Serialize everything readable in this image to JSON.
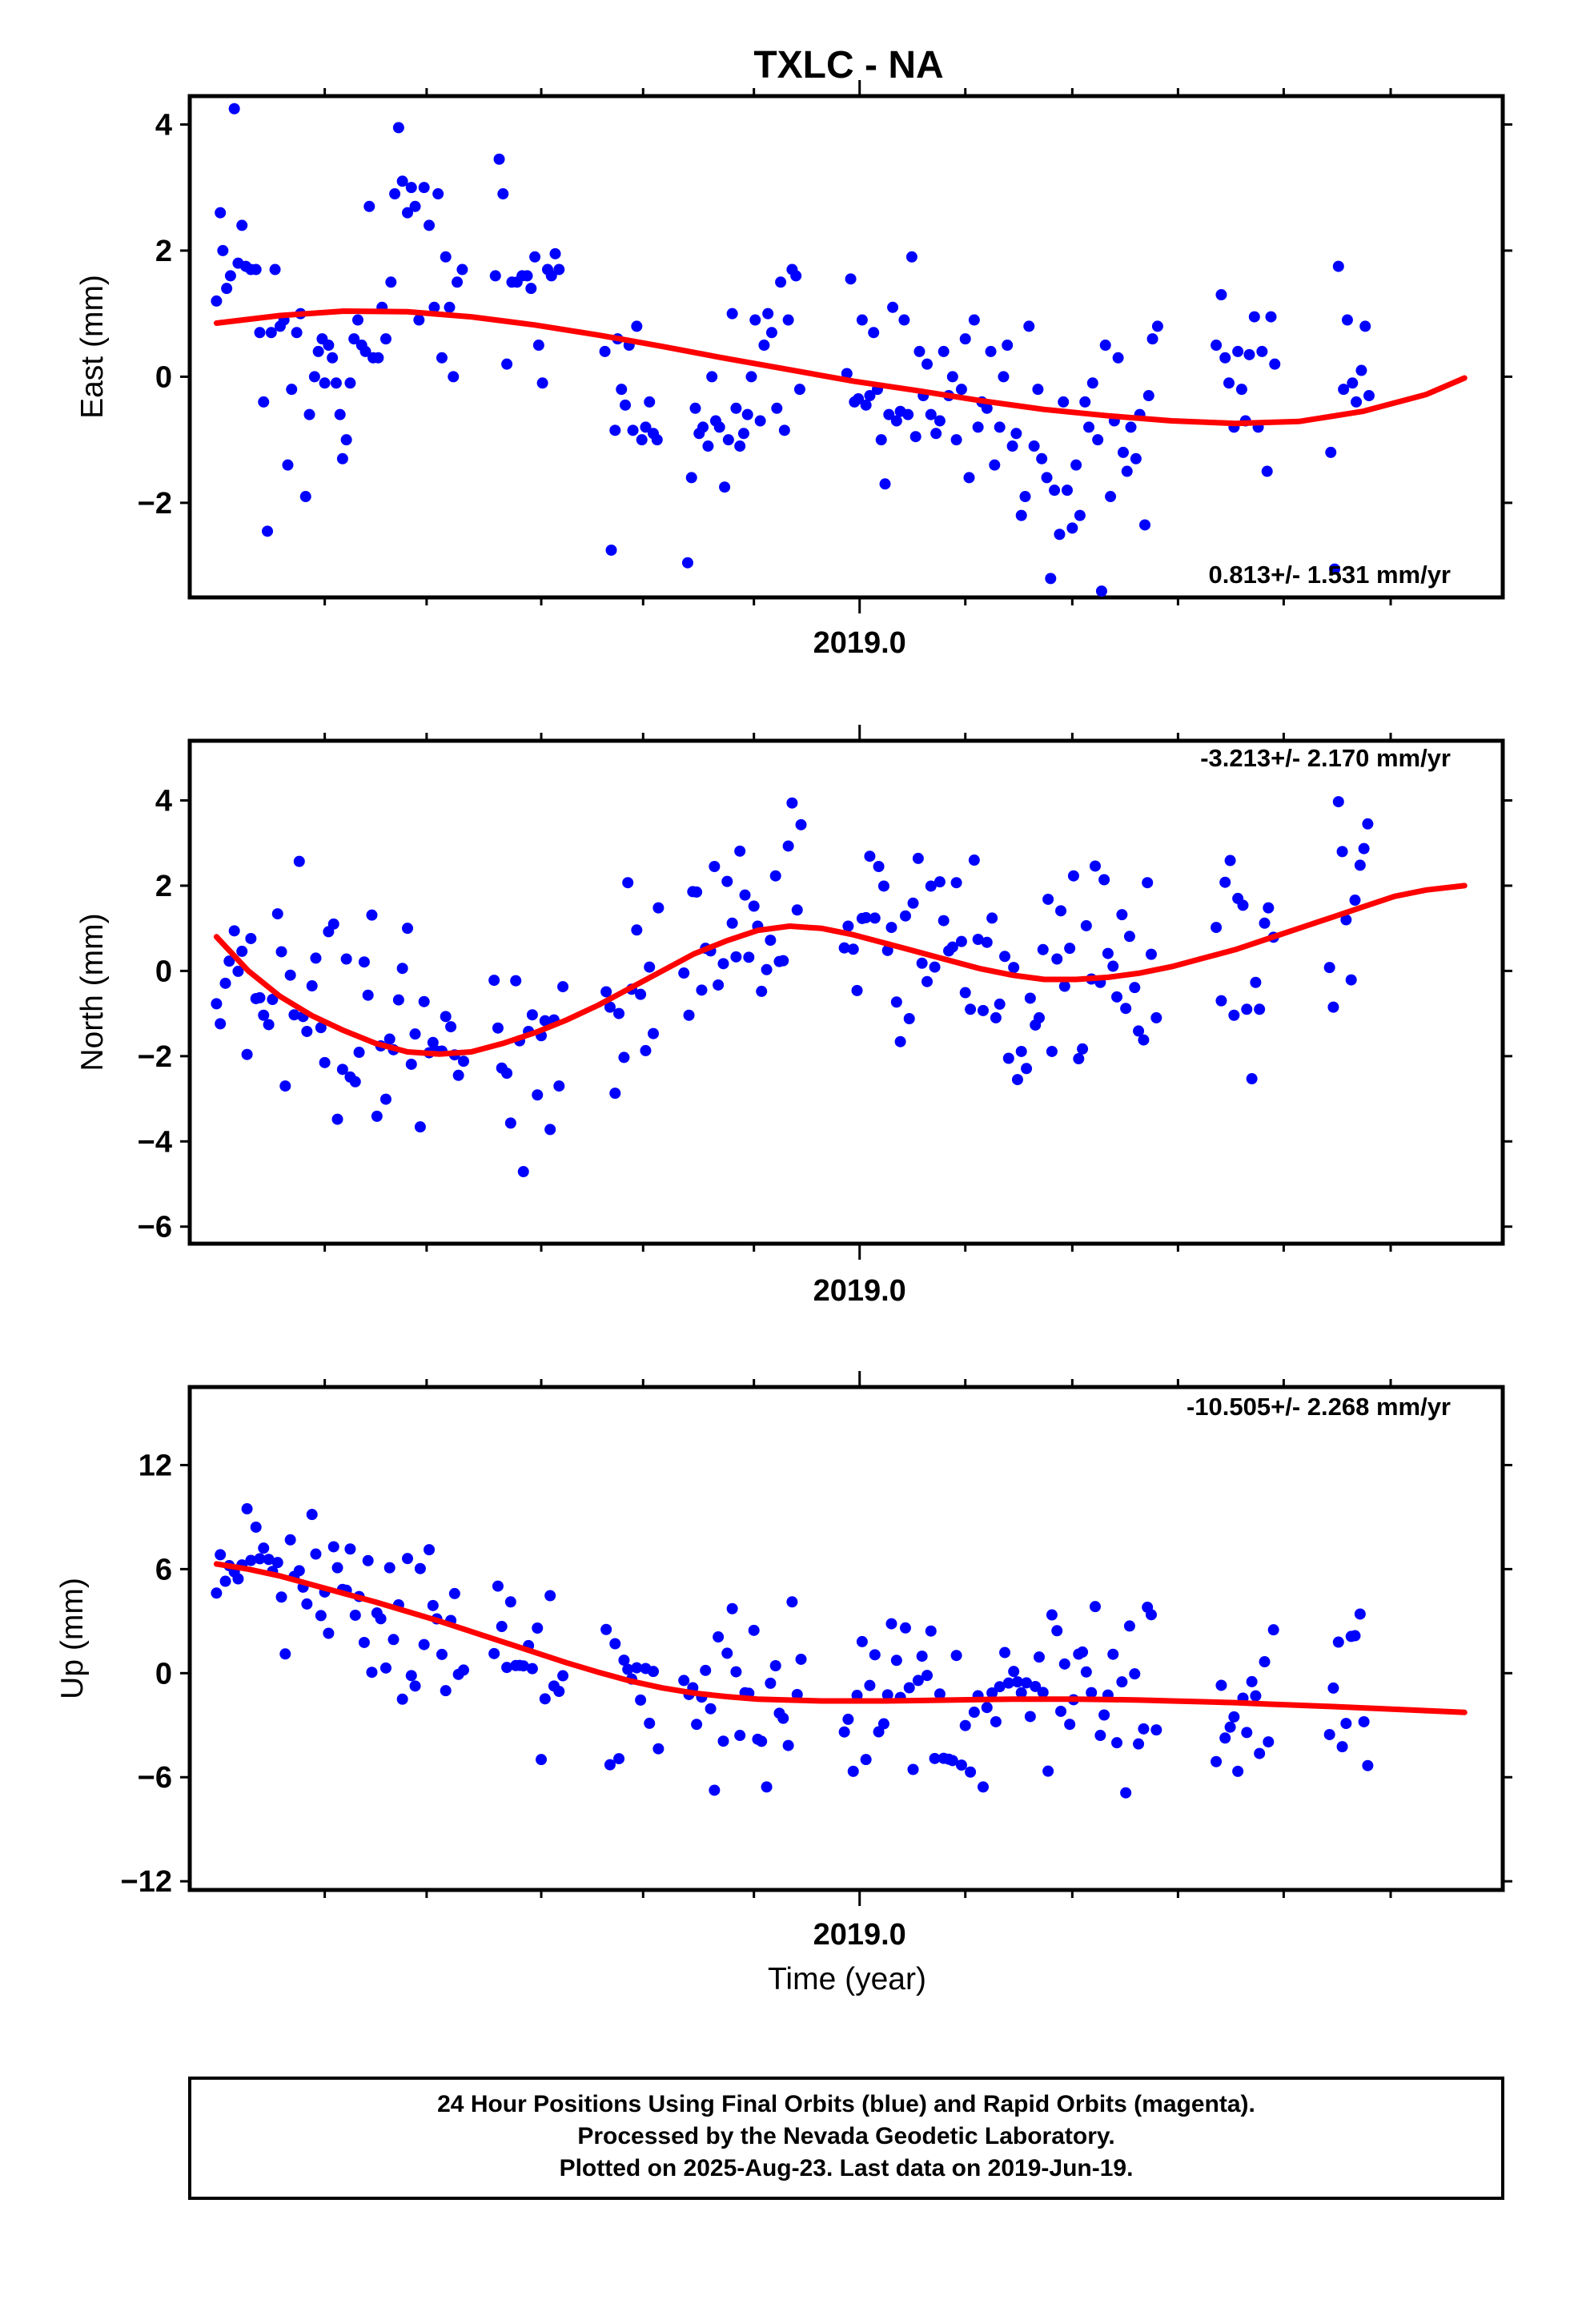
{
  "title": "TXLC - NA",
  "x_axis_label": "Time (year)",
  "footer": {
    "line1": "24 Hour Positions Using Final Orbits (blue) and Rapid Orbits (magenta).",
    "line2": "Processed by the Nevada Geodetic Laboratory.",
    "line3": "Plotted on 2025-Aug-23. Last data on 2019-Jun-19."
  },
  "colors": {
    "points": "#0000ff",
    "fit": "#ff0000",
    "axes": "#000000"
  },
  "chart_data": [
    {
      "type": "scatter",
      "ylabel": "East (mm)",
      "xtick_label": "2019.0",
      "xlim": [
        2018.474,
        2019.505
      ],
      "ylim": [
        -3.5,
        4.45
      ],
      "yticks": [
        4,
        2,
        0,
        -2
      ],
      "ytick_labels": [
        "4",
        "2",
        "0",
        "−2"
      ],
      "rate_text": "0.813+/- 1.531 mm/yr",
      "fit_x": [
        2018.495,
        2018.545,
        2018.595,
        2018.645,
        2018.695,
        2018.745,
        2018.795,
        2018.845,
        2018.895,
        2018.945,
        2018.995,
        2019.045,
        2019.095,
        2019.145,
        2019.195,
        2019.245,
        2019.295,
        2019.345,
        2019.395,
        2019.445,
        2019.475
      ],
      "fit_y": [
        0.85,
        0.97,
        1.04,
        1.03,
        0.95,
        0.82,
        0.66,
        0.48,
        0.29,
        0.11,
        -0.07,
        -0.22,
        -0.38,
        -0.52,
        -0.62,
        -0.7,
        -0.74,
        -0.71,
        -0.55,
        -0.28,
        -0.02
      ],
      "points": [
        [
          2018.495,
          1.2
        ],
        [
          2018.498,
          2.6
        ],
        [
          2018.5,
          2.0
        ],
        [
          2018.503,
          1.4
        ],
        [
          2018.506,
          1.6
        ],
        [
          2018.509,
          4.25
        ],
        [
          2018.512,
          1.8
        ],
        [
          2018.515,
          2.4
        ],
        [
          2018.518,
          1.75
        ],
        [
          2018.522,
          1.7
        ],
        [
          2018.526,
          1.7
        ],
        [
          2018.529,
          0.7
        ],
        [
          2018.532,
          -0.4
        ],
        [
          2018.535,
          -2.45
        ],
        [
          2018.538,
          0.7
        ],
        [
          2018.541,
          1.7
        ],
        [
          2018.545,
          0.8
        ],
        [
          2018.548,
          0.9
        ],
        [
          2018.551,
          -1.4
        ],
        [
          2018.554,
          -0.2
        ],
        [
          2018.558,
          0.7
        ],
        [
          2018.561,
          1.0
        ],
        [
          2018.565,
          -1.9
        ],
        [
          2018.568,
          -0.6
        ],
        [
          2018.572,
          0.0
        ],
        [
          2018.575,
          0.4
        ],
        [
          2018.578,
          0.6
        ],
        [
          2018.58,
          -0.1
        ],
        [
          2018.583,
          0.5
        ],
        [
          2018.586,
          0.3
        ],
        [
          2018.589,
          -0.1
        ],
        [
          2018.592,
          -0.6
        ],
        [
          2018.594,
          -1.3
        ],
        [
          2018.597,
          -1.0
        ],
        [
          2018.6,
          -0.1
        ],
        [
          2018.603,
          0.6
        ],
        [
          2018.606,
          0.9
        ],
        [
          2018.609,
          0.5
        ],
        [
          2018.612,
          0.4
        ],
        [
          2018.615,
          2.7
        ],
        [
          2018.618,
          0.3
        ],
        [
          2018.622,
          0.3
        ],
        [
          2018.625,
          1.1
        ],
        [
          2018.628,
          0.6
        ],
        [
          2018.632,
          1.5
        ],
        [
          2018.635,
          2.9
        ],
        [
          2018.638,
          3.95
        ],
        [
          2018.641,
          3.1
        ],
        [
          2018.645,
          2.6
        ],
        [
          2018.648,
          3.0
        ],
        [
          2018.651,
          2.7
        ],
        [
          2018.654,
          0.9
        ],
        [
          2018.658,
          3.0
        ],
        [
          2018.662,
          2.4
        ],
        [
          2018.666,
          1.1
        ],
        [
          2018.669,
          2.9
        ],
        [
          2018.672,
          0.3
        ],
        [
          2018.675,
          1.9
        ],
        [
          2018.678,
          1.1
        ],
        [
          2018.681,
          0.0
        ],
        [
          2018.684,
          1.5
        ],
        [
          2018.688,
          1.7
        ],
        [
          2018.714,
          1.6
        ],
        [
          2018.717,
          3.45
        ],
        [
          2018.72,
          2.9
        ],
        [
          2018.723,
          0.2
        ],
        [
          2018.727,
          1.5
        ],
        [
          2018.731,
          1.5
        ],
        [
          2018.735,
          1.6
        ],
        [
          2018.739,
          1.6
        ],
        [
          2018.742,
          1.4
        ],
        [
          2018.745,
          1.9
        ],
        [
          2018.748,
          0.5
        ],
        [
          2018.751,
          -0.1
        ],
        [
          2018.755,
          1.7
        ],
        [
          2018.758,
          1.6
        ],
        [
          2018.761,
          1.95
        ],
        [
          2018.764,
          1.7
        ],
        [
          2018.8,
          0.4
        ],
        [
          2018.805,
          -2.75
        ],
        [
          2018.808,
          -0.85
        ],
        [
          2018.81,
          0.6
        ],
        [
          2018.813,
          -0.2
        ],
        [
          2018.816,
          -0.45
        ],
        [
          2018.819,
          0.5
        ],
        [
          2018.822,
          -0.85
        ],
        [
          2018.825,
          0.8
        ],
        [
          2018.829,
          -1.0
        ],
        [
          2018.832,
          -0.8
        ],
        [
          2018.835,
          -0.4
        ],
        [
          2018.838,
          -0.9
        ],
        [
          2018.841,
          -1.0
        ],
        [
          2018.865,
          -2.95
        ],
        [
          2018.868,
          -1.6
        ],
        [
          2018.871,
          -0.5
        ],
        [
          2018.874,
          -0.9
        ],
        [
          2018.877,
          -0.8
        ],
        [
          2018.881,
          -1.1
        ],
        [
          2018.884,
          0.0
        ],
        [
          2018.887,
          -0.7
        ],
        [
          2018.89,
          -0.8
        ],
        [
          2018.894,
          -1.75
        ],
        [
          2018.897,
          -1.0
        ],
        [
          2018.9,
          1.0
        ],
        [
          2018.903,
          -0.5
        ],
        [
          2018.906,
          -1.1
        ],
        [
          2018.909,
          -0.9
        ],
        [
          2018.912,
          -0.6
        ],
        [
          2018.915,
          0.0
        ],
        [
          2018.918,
          0.9
        ],
        [
          2018.922,
          -0.7
        ],
        [
          2018.925,
          0.5
        ],
        [
          2018.928,
          1.0
        ],
        [
          2018.931,
          0.7
        ],
        [
          2018.935,
          -0.5
        ],
        [
          2018.938,
          1.5
        ],
        [
          2018.941,
          -0.85
        ],
        [
          2018.944,
          0.9
        ],
        [
          2018.947,
          1.7
        ],
        [
          2018.95,
          1.6
        ],
        [
          2018.953,
          -0.2
        ],
        [
          2018.99,
          0.05
        ],
        [
          2018.993,
          1.55
        ],
        [
          2018.996,
          -0.4
        ],
        [
          2018.999,
          -0.35
        ],
        [
          2019.002,
          0.9
        ],
        [
          2019.005,
          -0.45
        ],
        [
          2019.008,
          -0.3
        ],
        [
          2019.011,
          0.7
        ],
        [
          2019.014,
          -0.2
        ],
        [
          2019.017,
          -1.0
        ],
        [
          2019.02,
          -1.7
        ],
        [
          2019.023,
          -0.6
        ],
        [
          2019.026,
          1.1
        ],
        [
          2019.029,
          -0.7
        ],
        [
          2019.032,
          -0.55
        ],
        [
          2019.035,
          0.9
        ],
        [
          2019.038,
          -0.6
        ],
        [
          2019.041,
          1.9
        ],
        [
          2019.044,
          -0.95
        ],
        [
          2019.047,
          0.4
        ],
        [
          2019.05,
          -0.3
        ],
        [
          2019.053,
          0.2
        ],
        [
          2019.056,
          -0.6
        ],
        [
          2019.06,
          -0.9
        ],
        [
          2019.063,
          -0.7
        ],
        [
          2019.066,
          0.4
        ],
        [
          2019.07,
          -0.3
        ],
        [
          2019.073,
          0.0
        ],
        [
          2019.076,
          -1.0
        ],
        [
          2019.08,
          -0.2
        ],
        [
          2019.083,
          0.6
        ],
        [
          2019.086,
          -1.6
        ],
        [
          2019.09,
          0.9
        ],
        [
          2019.093,
          -0.8
        ],
        [
          2019.096,
          -0.4
        ],
        [
          2019.1,
          -0.5
        ],
        [
          2019.103,
          0.4
        ],
        [
          2019.106,
          -1.4
        ],
        [
          2019.11,
          -0.8
        ],
        [
          2019.113,
          0.0
        ],
        [
          2019.116,
          0.5
        ],
        [
          2019.12,
          -1.1
        ],
        [
          2019.123,
          -0.9
        ],
        [
          2019.127,
          -2.2
        ],
        [
          2019.13,
          -1.9
        ],
        [
          2019.133,
          0.8
        ],
        [
          2019.137,
          -1.1
        ],
        [
          2019.14,
          -0.2
        ],
        [
          2019.143,
          -1.3
        ],
        [
          2019.147,
          -1.6
        ],
        [
          2019.15,
          -3.2
        ],
        [
          2019.153,
          -1.8
        ],
        [
          2019.157,
          -2.5
        ],
        [
          2019.16,
          -0.4
        ],
        [
          2019.163,
          -1.8
        ],
        [
          2019.167,
          -2.4
        ],
        [
          2019.17,
          -1.4
        ],
        [
          2019.173,
          -2.2
        ],
        [
          2019.177,
          -0.4
        ],
        [
          2019.18,
          -0.8
        ],
        [
          2019.183,
          -0.1
        ],
        [
          2019.187,
          -1.0
        ],
        [
          2019.19,
          -3.4
        ],
        [
          2019.193,
          0.5
        ],
        [
          2019.197,
          -1.9
        ],
        [
          2019.2,
          -0.7
        ],
        [
          2019.203,
          0.3
        ],
        [
          2019.207,
          -1.2
        ],
        [
          2019.21,
          -1.5
        ],
        [
          2019.213,
          -0.8
        ],
        [
          2019.217,
          -1.3
        ],
        [
          2019.22,
          -0.6
        ],
        [
          2019.224,
          -2.35
        ],
        [
          2019.227,
          -0.3
        ],
        [
          2019.23,
          0.6
        ],
        [
          2019.234,
          0.8
        ],
        [
          2019.28,
          0.5
        ],
        [
          2019.284,
          1.3
        ],
        [
          2019.287,
          0.3
        ],
        [
          2019.29,
          -0.1
        ],
        [
          2019.294,
          -0.8
        ],
        [
          2019.297,
          0.4
        ],
        [
          2019.3,
          -0.2
        ],
        [
          2019.303,
          -0.7
        ],
        [
          2019.306,
          0.35
        ],
        [
          2019.31,
          0.95
        ],
        [
          2019.313,
          -0.8
        ],
        [
          2019.316,
          0.4
        ],
        [
          2019.32,
          -1.5
        ],
        [
          2019.323,
          0.95
        ],
        [
          2019.326,
          0.2
        ],
        [
          2019.37,
          -1.2
        ],
        [
          2019.373,
          -3.05
        ],
        [
          2019.376,
          1.75
        ],
        [
          2019.38,
          -0.2
        ],
        [
          2019.383,
          0.9
        ],
        [
          2019.387,
          -0.1
        ],
        [
          2019.39,
          -0.4
        ],
        [
          2019.394,
          0.1
        ],
        [
          2019.397,
          0.8
        ],
        [
          2019.4,
          -0.3
        ]
      ]
    },
    {
      "type": "scatter",
      "ylabel": "North (mm)",
      "xtick_label": "2019.0",
      "xlim": [
        2018.474,
        2019.505
      ],
      "ylim": [
        -6.4,
        5.4
      ],
      "yticks": [
        4,
        2,
        0,
        -2,
        -4,
        -6
      ],
      "ytick_labels": [
        "4",
        "2",
        "0",
        "−2",
        "−4",
        "−6"
      ],
      "rate_text": "-3.213+/- 2.170 mm/yr",
      "fit_x": [
        2018.495,
        2018.52,
        2018.545,
        2018.57,
        2018.595,
        2018.62,
        2018.645,
        2018.67,
        2018.695,
        2018.72,
        2018.745,
        2018.77,
        2018.795,
        2018.82,
        2018.845,
        2018.87,
        2018.895,
        2018.92,
        2018.945,
        2018.97,
        2018.995,
        2019.02,
        2019.045,
        2019.07,
        2019.095,
        2019.12,
        2019.145,
        2019.17,
        2019.195,
        2019.22,
        2019.245,
        2019.27,
        2019.295,
        2019.32,
        2019.345,
        2019.37,
        2019.395,
        2019.42,
        2019.445,
        2019.475
      ],
      "fit_y": [
        0.8,
        0.0,
        -0.6,
        -1.05,
        -1.4,
        -1.7,
        -1.9,
        -1.95,
        -1.9,
        -1.7,
        -1.45,
        -1.15,
        -0.8,
        -0.4,
        0.0,
        0.4,
        0.7,
        0.95,
        1.05,
        1.0,
        0.85,
        0.65,
        0.45,
        0.25,
        0.05,
        -0.1,
        -0.2,
        -0.2,
        -0.15,
        -0.05,
        0.1,
        0.3,
        0.5,
        0.75,
        1.0,
        1.25,
        1.5,
        1.75,
        1.9,
        2.0
      ]
    },
    {
      "type": "scatter",
      "ylabel": "Up (mm)",
      "xtick_label": "2019.0",
      "xlim": [
        2018.474,
        2019.505
      ],
      "ylim": [
        -12.5,
        16.5
      ],
      "yticks": [
        12,
        6,
        0,
        -6,
        -12
      ],
      "ytick_labels": [
        "12",
        "6",
        "0",
        "−6",
        "−12"
      ],
      "rate_text": "-10.505+/- 2.268 mm/yr",
      "fit_x": [
        2018.495,
        2018.52,
        2018.545,
        2018.57,
        2018.595,
        2018.62,
        2018.645,
        2018.67,
        2018.695,
        2018.72,
        2018.745,
        2018.77,
        2018.795,
        2018.82,
        2018.845,
        2018.87,
        2018.895,
        2018.92,
        2018.945,
        2018.97,
        2018.995,
        2019.02,
        2019.045,
        2019.07,
        2019.095,
        2019.12,
        2019.145,
        2019.17,
        2019.195,
        2019.22,
        2019.245,
        2019.27,
        2019.295,
        2019.32,
        2019.345,
        2019.37,
        2019.395,
        2019.42,
        2019.445,
        2019.475
      ],
      "fit_y": [
        6.3,
        6.0,
        5.6,
        5.1,
        4.6,
        4.1,
        3.55,
        3.0,
        2.4,
        1.8,
        1.2,
        0.6,
        0.05,
        -0.45,
        -0.85,
        -1.15,
        -1.35,
        -1.5,
        -1.55,
        -1.6,
        -1.6,
        -1.6,
        -1.58,
        -1.55,
        -1.52,
        -1.5,
        -1.5,
        -1.5,
        -1.52,
        -1.55,
        -1.6,
        -1.65,
        -1.7,
        -1.78,
        -1.85,
        -1.92,
        -2.0,
        -2.08,
        -2.16,
        -2.26
      ]
    }
  ]
}
